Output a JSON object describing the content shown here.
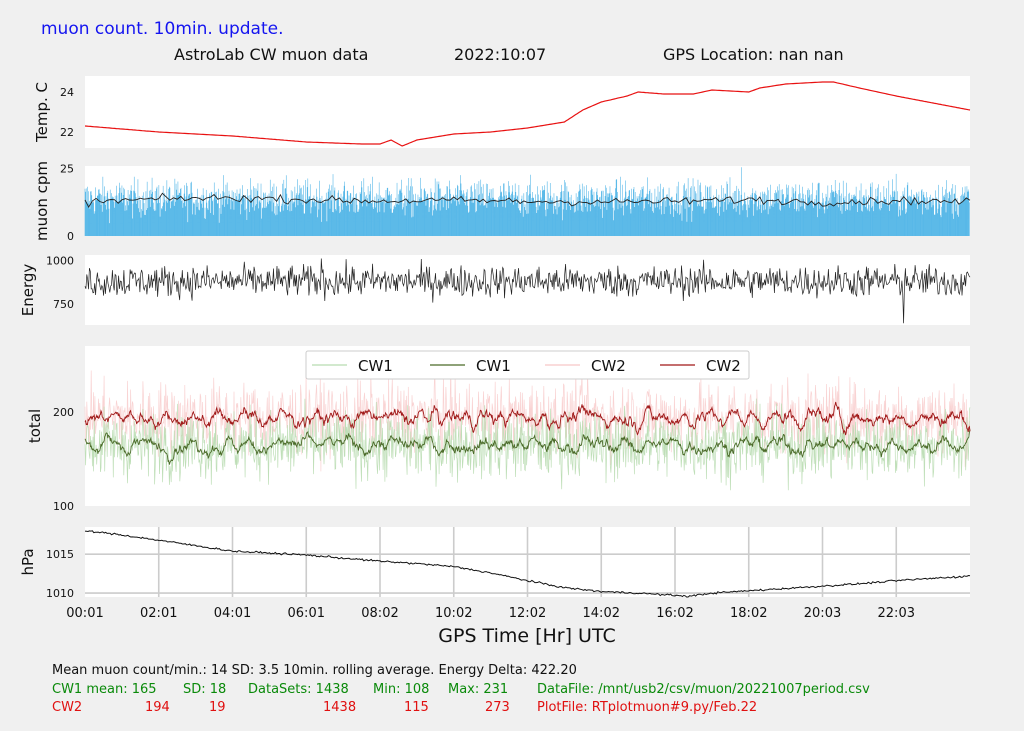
{
  "header": {
    "title": "muon count.  10min. update.",
    "lab": "AstroLab CW muon data",
    "date": "2022:10:07",
    "gps": "GPS Location: nan   nan"
  },
  "xaxis": {
    "label": "GPS Time  [Hr] UTC",
    "ticks": [
      "00:01",
      "02:01",
      "04:01",
      "06:01",
      "08:02",
      "10:02",
      "12:02",
      "14:02",
      "16:02",
      "18:02",
      "20:03",
      "22:03"
    ]
  },
  "colors": {
    "temp": "#e81010",
    "muon": "#58b8e8",
    "rolling": "#222222",
    "energy": "#222222",
    "cw1_raw": "#b8dcb0",
    "cw1_avg": "#4a6a28",
    "cw2_raw": "#f8c8c8",
    "cw2_avg": "#a01818",
    "pressure": "#111111",
    "panel_bg": "#ffffff"
  },
  "chart_data": [
    {
      "type": "line",
      "ylabel": "Temp. C",
      "yticks": [
        22,
        24
      ],
      "ylim": [
        21.2,
        24.8
      ],
      "x": [
        0,
        2,
        4,
        6,
        7.5,
        8,
        8.3,
        8.6,
        9,
        10,
        11,
        12,
        13,
        13.5,
        14,
        14.7,
        15,
        15.7,
        16.5,
        17,
        18,
        18.3,
        19,
        20,
        20.3,
        21,
        22,
        24
      ],
      "y": [
        22.3,
        22.0,
        21.8,
        21.5,
        21.4,
        21.4,
        21.6,
        21.3,
        21.6,
        21.9,
        22.0,
        22.2,
        22.5,
        23.1,
        23.5,
        23.8,
        24.0,
        23.9,
        23.9,
        24.1,
        24.0,
        24.2,
        24.4,
        24.5,
        24.5,
        24.2,
        23.8,
        23.1
      ]
    },
    {
      "type": "bar",
      "ylabel": "muon cpm",
      "yticks": [
        0,
        25
      ],
      "ylim": [
        0,
        26
      ],
      "mean": 14,
      "sd": 3.5,
      "series": [
        {
          "style": "per-minute bars"
        },
        {
          "style": "rolling average",
          "x": [
            0,
            2,
            4,
            6,
            8,
            10,
            12,
            14,
            16,
            18,
            20,
            22,
            24
          ],
          "y": [
            12.5,
            13.8,
            14.2,
            13.5,
            13.0,
            13.3,
            12.8,
            12.7,
            12.9,
            13.5,
            12.5,
            13.2,
            12.6
          ]
        }
      ]
    },
    {
      "type": "line",
      "ylabel": "Energy",
      "yticks": [
        750,
        1000
      ],
      "ylim": [
        630,
        1030
      ],
      "x_extremes": [
        6.4,
        22.2
      ],
      "y_extremes": [
        1010,
        640
      ],
      "mean": 880
    },
    {
      "type": "line",
      "ylabel": "total",
      "yticks": [
        100,
        200
      ],
      "ylim": [
        100,
        270
      ],
      "legend": [
        "CW1",
        "CW1",
        "CW2",
        "CW2"
      ],
      "legend_loc": "top-center",
      "series": [
        {
          "name": "CW1",
          "style": "raw",
          "mean": 165
        },
        {
          "name": "CW1",
          "style": "rolling",
          "mean": 165
        },
        {
          "name": "CW2",
          "style": "raw",
          "mean": 194
        },
        {
          "name": "CW2",
          "style": "rolling",
          "mean": 194
        }
      ]
    },
    {
      "type": "line",
      "ylabel": "hPa",
      "yticks": [
        1010,
        1015
      ],
      "ylim": [
        1009.5,
        1018.5
      ],
      "grid": true,
      "x": [
        0,
        0.8,
        2,
        4,
        6,
        8,
        9,
        10,
        11,
        12,
        13,
        14,
        15,
        16,
        16.4,
        17,
        18,
        19,
        20,
        21,
        22,
        23,
        24
      ],
      "y": [
        1018.0,
        1017.6,
        1016.8,
        1015.4,
        1014.9,
        1014.1,
        1013.8,
        1013.4,
        1012.6,
        1011.6,
        1010.7,
        1010.2,
        1010.0,
        1009.7,
        1009.6,
        1010.0,
        1010.3,
        1010.6,
        1010.9,
        1011.2,
        1011.6,
        1011.9,
        1012.2
      ]
    }
  ],
  "stats": {
    "line1": "Mean muon count/min.: 14  SD: 3.5   10min. rolling average.    Energy Delta:  422.20",
    "cw1": {
      "label": "CW1 mean: 165",
      "sd": "SD: 18",
      "datasets": "DataSets: 1438",
      "min": "Min: 108",
      "max": "Max: 231",
      "file": "DataFile: /mnt/usb2/csv/muon/20221007period.csv"
    },
    "cw2": {
      "label": "CW2",
      "mean": "194",
      "sd": "19",
      "datasets": "1438",
      "min": "115",
      "max": "273",
      "file": "PlotFile: RTplotmuon#9.py/Feb.22"
    }
  }
}
